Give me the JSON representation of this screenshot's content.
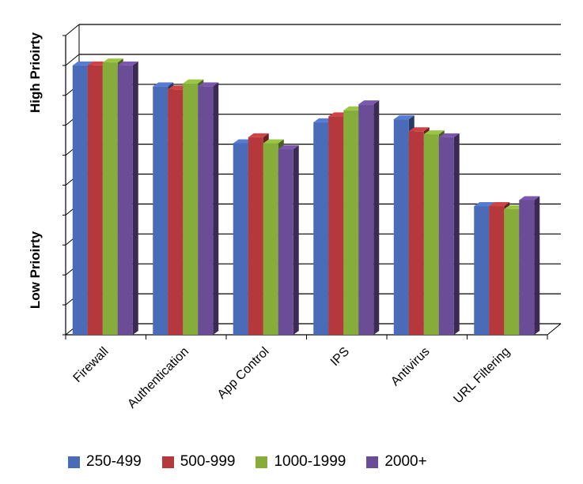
{
  "chart_data": {
    "type": "bar",
    "title": "",
    "ylabel_top": "High Prioirty",
    "ylabel_bottom": "Low Prioirty",
    "categories": [
      "Firewall",
      "Authentication",
      "App Control",
      "IPS",
      "Antivirus",
      "URL Filtering"
    ],
    "series": [
      {
        "name": "250-499",
        "color": "#4a6bb8",
        "values": [
          9.0,
          8.3,
          6.4,
          7.1,
          7.2,
          4.3
        ]
      },
      {
        "name": "500-999",
        "color": "#b5393c",
        "values": [
          9.0,
          8.2,
          6.6,
          7.3,
          6.8,
          4.3
        ]
      },
      {
        "name": "1000-1999",
        "color": "#86ad3a",
        "values": [
          9.1,
          8.4,
          6.4,
          7.5,
          6.7,
          4.2
        ]
      },
      {
        "name": "2000+",
        "color": "#6b4c96",
        "values": [
          9.0,
          8.3,
          6.2,
          7.7,
          6.6,
          4.5
        ]
      }
    ],
    "ylim": [
      0,
      10
    ],
    "grid": true,
    "legend_position": "bottom"
  }
}
